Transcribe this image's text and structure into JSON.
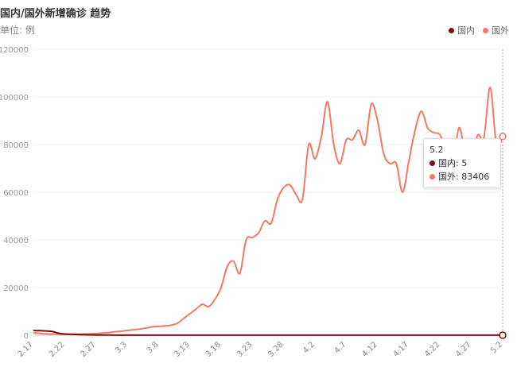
{
  "chart_data": {
    "type": "line",
    "title": "国内/国外新增确诊 趋势",
    "subtitle": "单位: 例",
    "ylim": [
      0,
      120000
    ],
    "yticks": [
      "0",
      "20000",
      "40000",
      "60000",
      "80000",
      "100000",
      "120000"
    ],
    "xticks": [
      "2.17",
      "2.22",
      "2.27",
      "3.3",
      "3.8",
      "3.13",
      "3.18",
      "3.23",
      "3.28",
      "4.2",
      "4.7",
      "4.12",
      "4.17",
      "4.22",
      "4.27",
      "5.2"
    ],
    "legend_position": "top-right",
    "series": [
      {
        "name": "国内",
        "color": "#7a0e0e",
        "values": [
          2000,
          1900,
          1800,
          1600,
          900,
          500,
          400,
          300,
          200,
          150,
          100,
          80,
          60,
          50,
          40,
          35,
          30,
          30,
          25,
          25,
          20,
          20,
          20,
          20,
          20,
          20,
          20,
          20,
          20,
          20,
          20,
          20,
          20,
          20,
          20,
          20,
          20,
          20,
          20,
          20,
          20,
          20,
          20,
          20,
          20,
          20,
          20,
          20,
          20,
          20,
          20,
          20,
          20,
          20,
          20,
          20,
          20,
          20,
          20,
          20,
          20,
          20,
          20,
          20,
          20,
          20,
          20,
          20,
          20,
          20,
          20,
          20,
          20,
          20,
          20,
          5
        ]
      },
      {
        "name": "国外",
        "color": "#f07a63",
        "values": [
          1000,
          800,
          600,
          500,
          400,
          400,
          400,
          400,
          500,
          600,
          700,
          900,
          1100,
          1400,
          1700,
          2000,
          2300,
          2600,
          3000,
          3500,
          3700,
          3900,
          4200,
          5000,
          7000,
          9000,
          11000,
          13000,
          12000,
          15000,
          20000,
          29000,
          31000,
          26000,
          40000,
          41000,
          43000,
          48000,
          47000,
          57000,
          62000,
          63000,
          59000,
          57000,
          80000,
          74000,
          83000,
          98000,
          80000,
          72000,
          82000,
          82000,
          86000,
          80000,
          97000,
          90000,
          76000,
          72000,
          72000,
          60000,
          73000,
          86000,
          94000,
          87000,
          85000,
          84000,
          77000,
          70000,
          87000,
          77000,
          74000,
          84000,
          83000,
          104000,
          80000,
          83406
        ]
      }
    ],
    "tooltip": {
      "date": "5.2",
      "rows": [
        {
          "label": "国内: 5",
          "color": "#7a0e0e"
        },
        {
          "label": "国外: 83406",
          "color": "#f07a63"
        }
      ]
    }
  }
}
